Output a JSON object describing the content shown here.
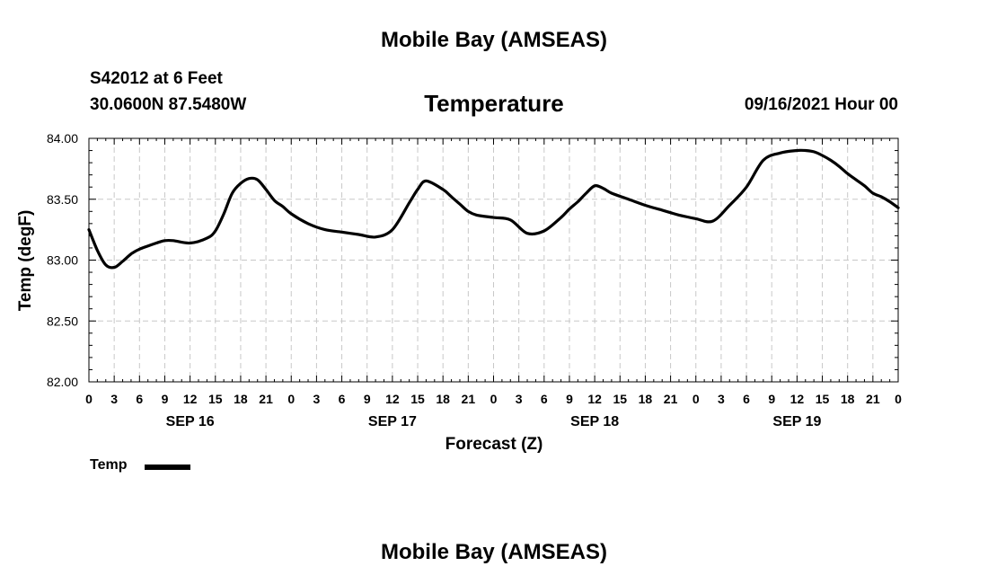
{
  "header": {
    "title_top": "Mobile Bay (AMSEAS)",
    "station": "S42012 at 6 Feet",
    "coords": "30.0600N  87.5480W",
    "subtitle": "Temperature",
    "datetime": "09/16/2021 Hour 00",
    "title_bottom": "Mobile Bay (AMSEAS)"
  },
  "legend": {
    "label": "Temp",
    "color": "#000000"
  },
  "chart_data": {
    "type": "line",
    "xlabel": "Forecast (Z)",
    "ylabel": "Temp (degF)",
    "xlim": [
      0,
      96
    ],
    "ylim": [
      82.0,
      84.0
    ],
    "grid": true,
    "legend_position": "bottom-left",
    "x_tick_labels": [
      "0",
      "3",
      "6",
      "9",
      "12",
      "15",
      "18",
      "21",
      "0",
      "3",
      "6",
      "9",
      "12",
      "15",
      "18",
      "21",
      "0",
      "3",
      "6",
      "9",
      "12",
      "15",
      "18",
      "21",
      "0",
      "3",
      "6",
      "9",
      "12",
      "15",
      "18",
      "21",
      "0"
    ],
    "y_tick_labels": [
      "84.00",
      "83.50",
      "83.00",
      "82.50",
      "82.00"
    ],
    "day_labels": [
      {
        "label": "SEP 16",
        "x": 12
      },
      {
        "label": "SEP 17",
        "x": 36
      },
      {
        "label": "SEP 18",
        "x": 60
      },
      {
        "label": "SEP 19",
        "x": 84
      }
    ],
    "series": [
      {
        "name": "Temp",
        "color": "#000000",
        "x": [
          0,
          1,
          2,
          3,
          4,
          5,
          6,
          8,
          9,
          10,
          12,
          14,
          15,
          16,
          17,
          18,
          19,
          20,
          21,
          22,
          23,
          24,
          26,
          28,
          30,
          32,
          34,
          36,
          38,
          39,
          40,
          42,
          43,
          44,
          45,
          46,
          48,
          50,
          52,
          54,
          56,
          57,
          58,
          59,
          60,
          61,
          62,
          64,
          66,
          68,
          69,
          70,
          72,
          74,
          76,
          78,
          80,
          82,
          84,
          85,
          86,
          87,
          88,
          89,
          90,
          91,
          92,
          93,
          94,
          95,
          96
        ],
        "y": [
          83.25,
          83.08,
          82.96,
          82.94,
          82.99,
          83.05,
          83.09,
          83.14,
          83.16,
          83.16,
          83.14,
          83.18,
          83.24,
          83.38,
          83.55,
          83.63,
          83.67,
          83.66,
          83.58,
          83.49,
          83.44,
          83.38,
          83.3,
          83.25,
          83.23,
          83.21,
          83.19,
          83.25,
          83.47,
          83.58,
          83.65,
          83.58,
          83.52,
          83.46,
          83.4,
          83.37,
          83.35,
          83.33,
          83.22,
          83.24,
          83.35,
          83.42,
          83.48,
          83.55,
          83.61,
          83.59,
          83.55,
          83.5,
          83.45,
          83.41,
          83.39,
          83.37,
          83.34,
          83.32,
          83.45,
          83.6,
          83.82,
          83.88,
          83.9,
          83.9,
          83.89,
          83.86,
          83.82,
          83.77,
          83.71,
          83.66,
          83.61,
          83.55,
          83.52,
          83.48,
          83.43
        ]
      }
    ]
  }
}
